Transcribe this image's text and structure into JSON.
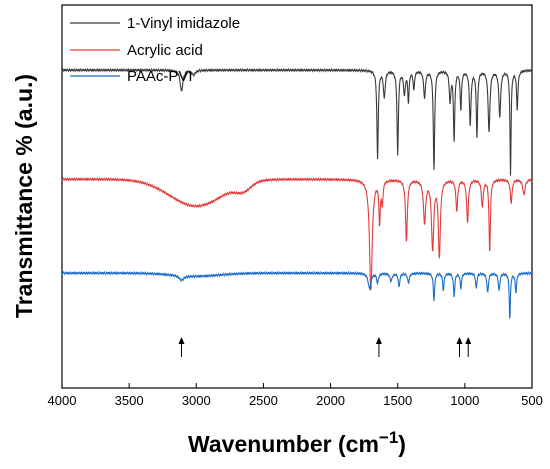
{
  "chart_data": {
    "type": "line",
    "title": "",
    "xlabel": "Wavenumber (cm",
    "xlabel_sup": "−1",
    "xlabel_close": ")",
    "ylabel": "Transmittance % (a.u.)",
    "xlim": [
      4000,
      500
    ],
    "x_reversed": true,
    "x_ticks": [
      4000,
      3500,
      3000,
      2500,
      2000,
      1500,
      1000,
      500
    ],
    "y_ticks_visible": false,
    "grid": false,
    "legend_placement": "top-left",
    "series": [
      {
        "name": "1-Vinyl imidazole",
        "color": "#3a3a3a",
        "offset": 0.83,
        "baseline": 0.0,
        "peaks": [
          {
            "x": 3110,
            "depth": 0.055,
            "width": 12
          },
          {
            "x": 3020,
            "depth": 0.012,
            "width": 15
          },
          {
            "x": 1650,
            "depth": 0.23,
            "width": 6
          },
          {
            "x": 1600,
            "depth": 0.07,
            "width": 8
          },
          {
            "x": 1500,
            "depth": 0.22,
            "width": 6
          },
          {
            "x": 1450,
            "depth": 0.06,
            "width": 8
          },
          {
            "x": 1420,
            "depth": 0.08,
            "width": 6
          },
          {
            "x": 1380,
            "depth": 0.05,
            "width": 6
          },
          {
            "x": 1300,
            "depth": 0.07,
            "width": 8
          },
          {
            "x": 1230,
            "depth": 0.26,
            "width": 6
          },
          {
            "x": 1110,
            "depth": 0.08,
            "width": 7
          },
          {
            "x": 1080,
            "depth": 0.18,
            "width": 6
          },
          {
            "x": 1030,
            "depth": 0.1,
            "width": 6
          },
          {
            "x": 960,
            "depth": 0.14,
            "width": 7
          },
          {
            "x": 910,
            "depth": 0.17,
            "width": 6
          },
          {
            "x": 820,
            "depth": 0.16,
            "width": 8
          },
          {
            "x": 740,
            "depth": 0.12,
            "width": 8
          },
          {
            "x": 660,
            "depth": 0.27,
            "width": 5
          },
          {
            "x": 610,
            "depth": 0.1,
            "width": 6
          }
        ]
      },
      {
        "name": "Acrylic acid",
        "color": "#e03c3c",
        "offset": 0.545,
        "baseline": 0.0,
        "broad": [
          {
            "x": 3000,
            "depth": 0.07,
            "width": 280
          },
          {
            "x": 2650,
            "depth": 0.02,
            "width": 80
          }
        ],
        "peaks": [
          {
            "x": 1700,
            "depth": 0.29,
            "width": 12
          },
          {
            "x": 1635,
            "depth": 0.11,
            "width": 6
          },
          {
            "x": 1615,
            "depth": 0.06,
            "width": 6
          },
          {
            "x": 1435,
            "depth": 0.16,
            "width": 8
          },
          {
            "x": 1300,
            "depth": 0.11,
            "width": 10
          },
          {
            "x": 1240,
            "depth": 0.18,
            "width": 10
          },
          {
            "x": 1190,
            "depth": 0.2,
            "width": 9
          },
          {
            "x": 1060,
            "depth": 0.08,
            "width": 8
          },
          {
            "x": 980,
            "depth": 0.11,
            "width": 8
          },
          {
            "x": 870,
            "depth": 0.07,
            "width": 8
          },
          {
            "x": 815,
            "depth": 0.19,
            "width": 6
          },
          {
            "x": 655,
            "depth": 0.06,
            "width": 8
          },
          {
            "x": 560,
            "depth": 0.04,
            "width": 10
          }
        ]
      },
      {
        "name": "PAAc-PVI",
        "color": "#1a6cc8",
        "offset": 0.3,
        "baseline": 0.0,
        "broad": [
          {
            "x": 3000,
            "depth": 0.008,
            "width": 250
          }
        ],
        "peaks": [
          {
            "x": 3110,
            "depth": 0.012,
            "width": 20
          },
          {
            "x": 1710,
            "depth": 0.04,
            "width": 12
          },
          {
            "x": 1650,
            "depth": 0.025,
            "width": 8
          },
          {
            "x": 1550,
            "depth": 0.02,
            "width": 10
          },
          {
            "x": 1490,
            "depth": 0.035,
            "width": 7
          },
          {
            "x": 1420,
            "depth": 0.025,
            "width": 8
          },
          {
            "x": 1230,
            "depth": 0.07,
            "width": 6
          },
          {
            "x": 1160,
            "depth": 0.045,
            "width": 6
          },
          {
            "x": 1080,
            "depth": 0.06,
            "width": 6
          },
          {
            "x": 1030,
            "depth": 0.04,
            "width": 6
          },
          {
            "x": 915,
            "depth": 0.04,
            "width": 6
          },
          {
            "x": 830,
            "depth": 0.05,
            "width": 7
          },
          {
            "x": 745,
            "depth": 0.045,
            "width": 7
          },
          {
            "x": 665,
            "depth": 0.12,
            "width": 5
          },
          {
            "x": 620,
            "depth": 0.05,
            "width": 6
          }
        ]
      }
    ],
    "annotations": [
      {
        "type": "arrow-up",
        "x": 3110
      },
      {
        "type": "arrow-up",
        "x": 1640
      },
      {
        "type": "arrow-up",
        "x": 1040
      },
      {
        "type": "arrow-up",
        "x": 975
      }
    ]
  }
}
